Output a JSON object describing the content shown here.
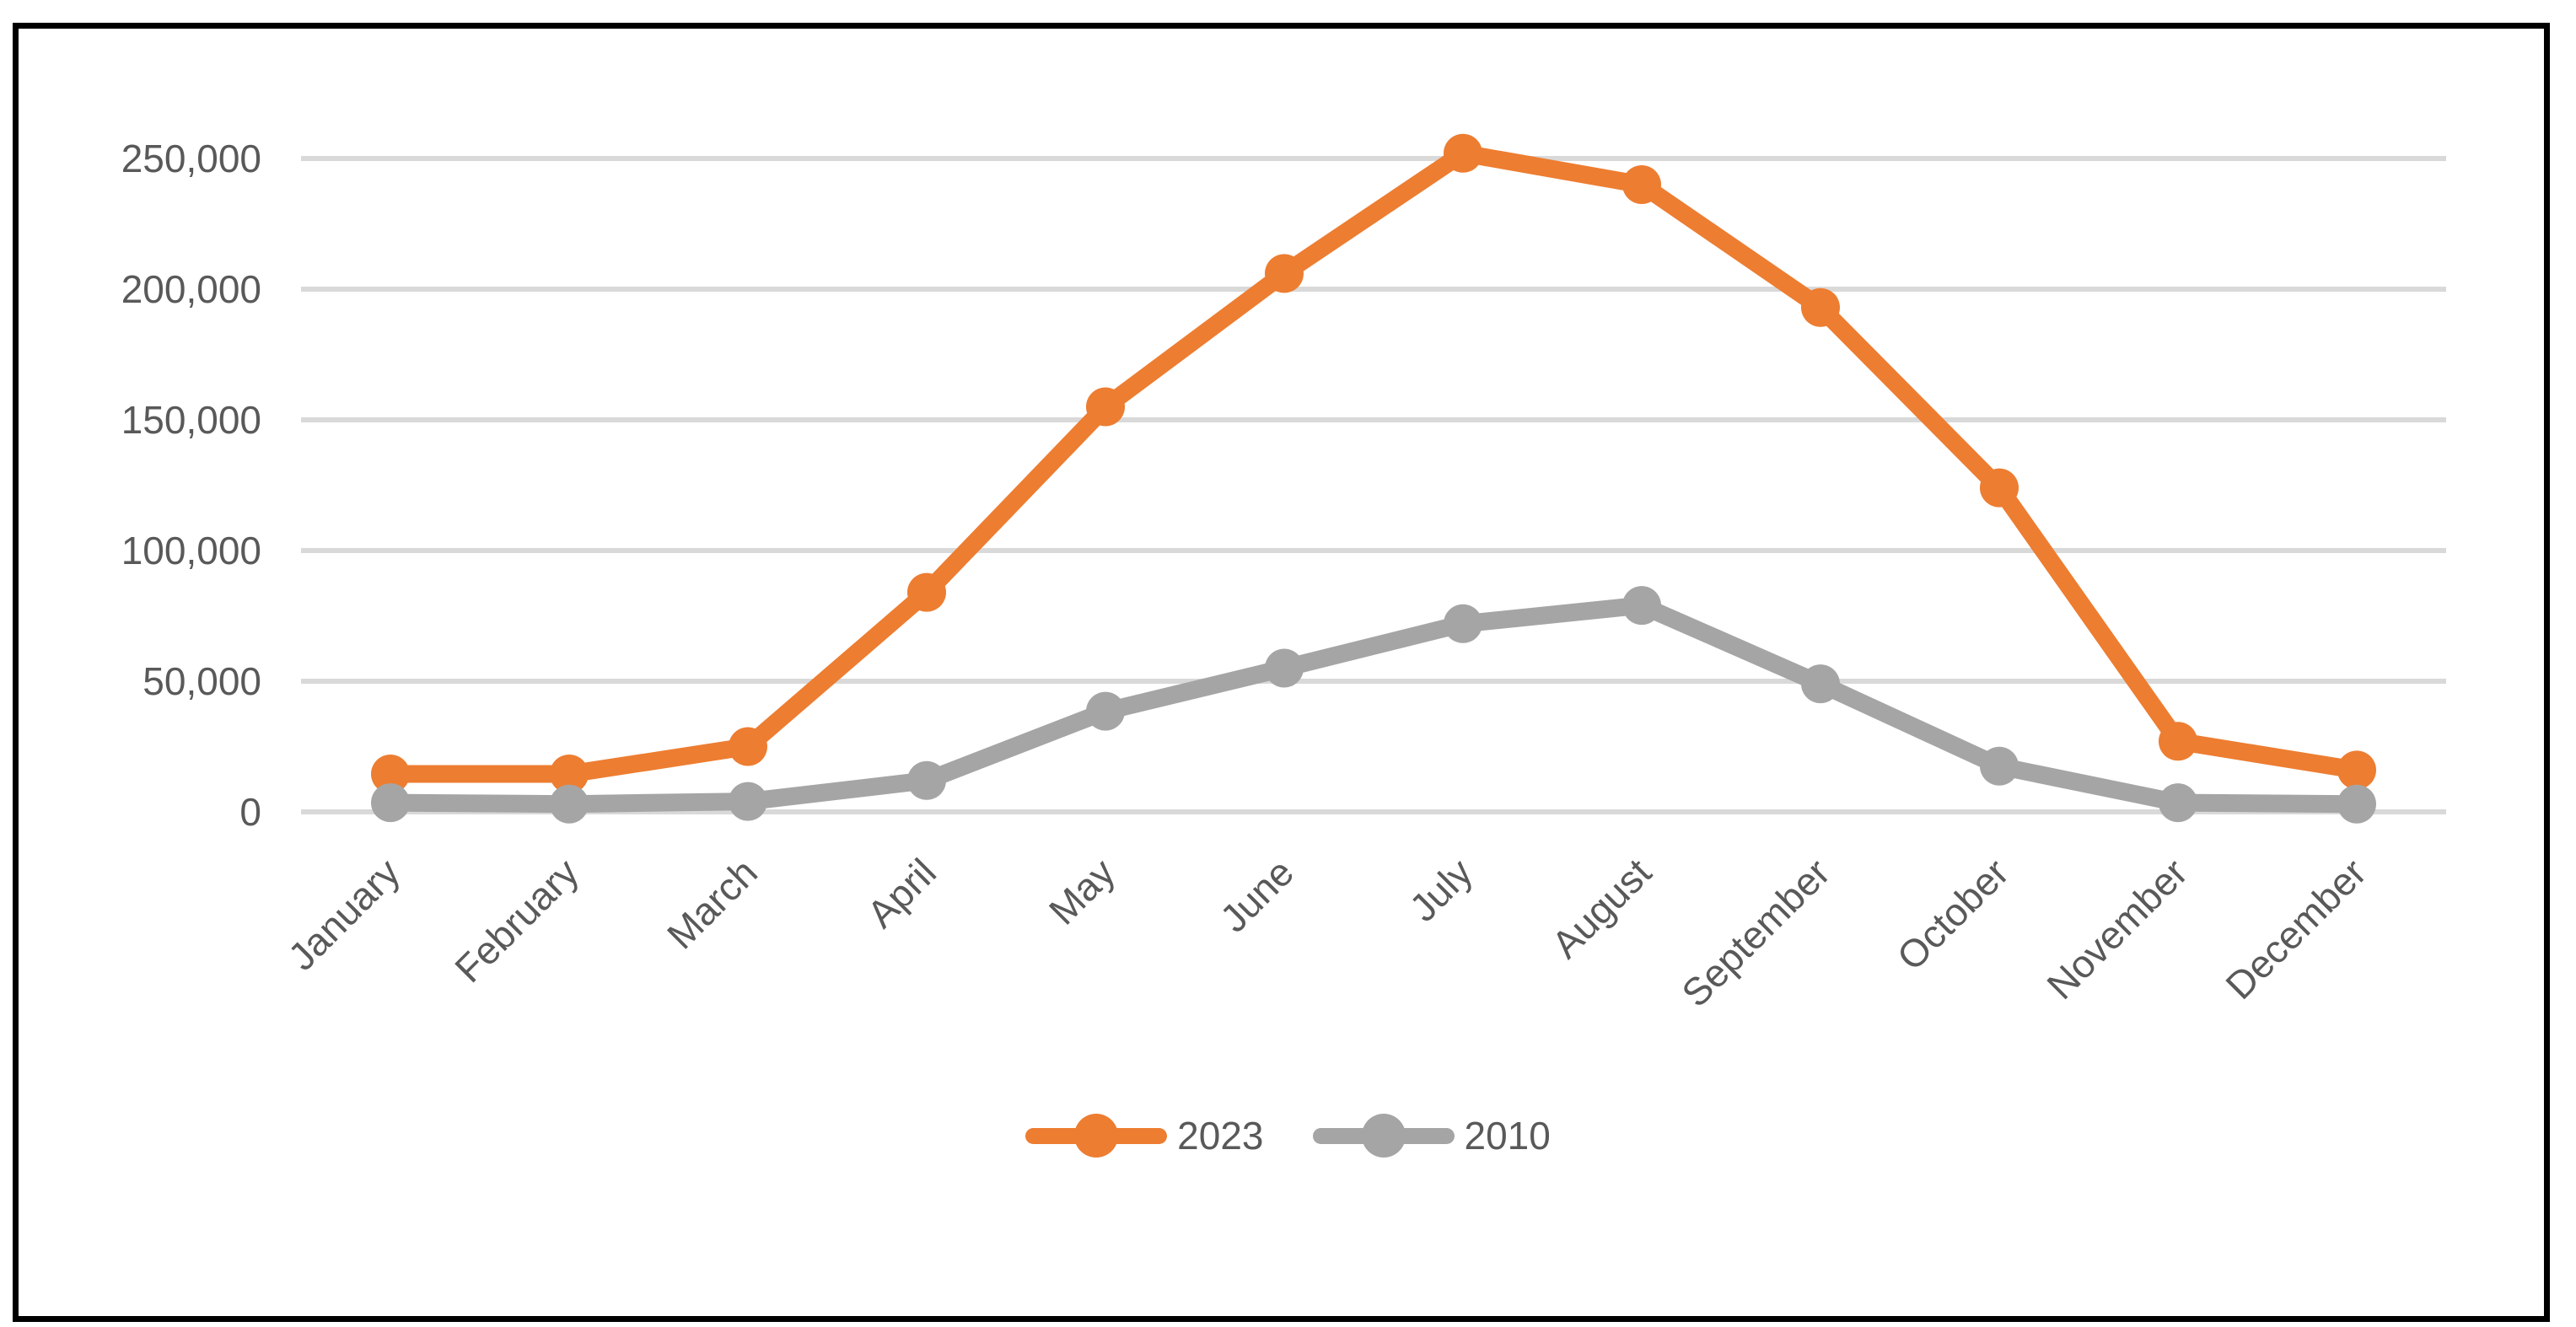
{
  "chart_data": {
    "type": "line",
    "title": "",
    "xlabel": "",
    "ylabel": "",
    "categories": [
      "January",
      "February",
      "March",
      "April",
      "May",
      "June",
      "July",
      "August",
      "September",
      "October",
      "November",
      "December"
    ],
    "series": [
      {
        "name": "2023",
        "color": "#ED7D31",
        "marker": "circle",
        "values": [
          14500,
          14500,
          25000,
          84000,
          155000,
          206000,
          252000,
          240000,
          193000,
          124000,
          27000,
          16000
        ]
      },
      {
        "name": "2010",
        "color": "#A5A5A5",
        "marker": "circle",
        "values": [
          3500,
          3000,
          4000,
          12000,
          38500,
          55000,
          72000,
          79000,
          49000,
          17500,
          3500,
          3000
        ]
      }
    ],
    "ylim": [
      0,
      250000
    ],
    "ytick_step": 50000,
    "ytick_labels": [
      "0",
      "50,000",
      "100,000",
      "150,000",
      "200,000",
      "250,000"
    ],
    "grid": true,
    "gridline_orientation": "horizontal",
    "legend_position": "bottom",
    "x_label_rotation_deg": 45
  },
  "colors": {
    "background": "#FFFFFF",
    "frame_border": "#000000",
    "gridline": "#D9D9D9",
    "axis_text": "#595959"
  }
}
